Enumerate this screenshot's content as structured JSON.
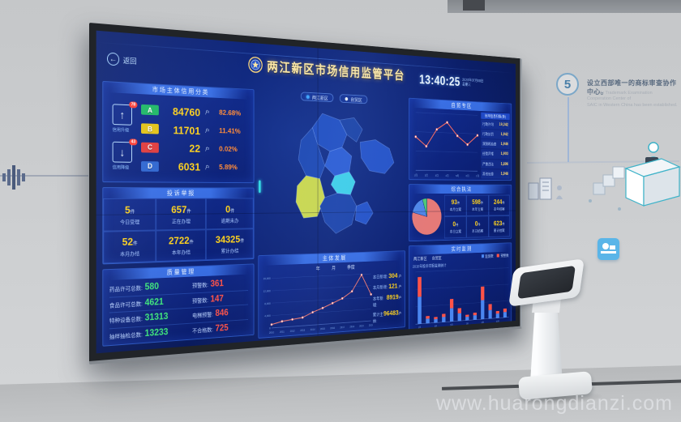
{
  "scene": {
    "watermark": "www.huarongdianzi.com",
    "wall_step": {
      "number": "5",
      "headline_cn": "设立西部唯一的商标审查协作中心。",
      "caption_en_line1": "The only Trademark Examination Cooperation Center of",
      "caption_en_line2": "SAIC in Western China has been established."
    }
  },
  "screen": {
    "back_label": "返回",
    "header": {
      "title": "两江新区市场信用监管平台",
      "clock": "13:40:25",
      "date": "2020年07月08日",
      "weekday": "星期三"
    },
    "map_tabs": {
      "tab1": "两江新区",
      "tab2": "自贸区"
    },
    "credit": {
      "title": "市场主体信用分类",
      "upgrade_label": "信用升级",
      "upgrade_badge": "78",
      "downgrade_label": "信用降级",
      "downgrade_badge": "43",
      "rows": [
        {
          "grade": "A",
          "count": "84760",
          "unit": "户",
          "pct": "82.68%",
          "color": "#1fb864"
        },
        {
          "grade": "B",
          "count": "11701",
          "unit": "户",
          "pct": "11.41%",
          "color": "#e6c414"
        },
        {
          "grade": "C",
          "count": "22",
          "unit": "户",
          "pct": "0.02%",
          "color": "#e23b3b"
        },
        {
          "grade": "D",
          "count": "6031",
          "unit": "户",
          "pct": "5.89%",
          "color": "#2f66d0"
        }
      ]
    },
    "complaints": {
      "title": "投诉举报",
      "cells": [
        {
          "value": "5",
          "unit": "件",
          "label": "今日受理"
        },
        {
          "value": "657",
          "unit": "件",
          "label": "正在办理"
        },
        {
          "value": "0",
          "unit": "件",
          "label": "逾期未办"
        },
        {
          "value": "52",
          "unit": "件",
          "label": "本月办结"
        },
        {
          "value": "2722",
          "unit": "件",
          "label": "本年办结"
        },
        {
          "value": "34325",
          "unit": "件",
          "label": "累计办结"
        }
      ]
    },
    "quality": {
      "title": "质量管理",
      "rows": [
        {
          "l": "药品许可总数:",
          "lv": "580",
          "r": "预警数:",
          "rv": "361"
        },
        {
          "l": "食品许可总数:",
          "lv": "4621",
          "r": "预警数:",
          "rv": "147"
        },
        {
          "l": "特种设备总数:",
          "lv": "31313",
          "r": "电梯预警:",
          "rv": "846"
        },
        {
          "l": "抽样抽检总数:",
          "lv": "13233",
          "r": "不合格数:",
          "rv": "725"
        }
      ]
    },
    "subject": {
      "title": "主体发展",
      "legend": [
        "年",
        "月",
        "季度"
      ],
      "stats": [
        {
          "label": "本日新增:",
          "value": "304",
          "unit": "户"
        },
        {
          "label": "本月新增:",
          "value": "121",
          "unit": "户"
        },
        {
          "label": "本年新增:",
          "value": "8919",
          "unit": "户"
        },
        {
          "label": "累计主体:",
          "value": "96483",
          "unit": "户"
        }
      ]
    },
    "ftz": {
      "title": "自贸专区",
      "list_header": "信用信息归集(条)",
      "rows": [
        {
          "label": "行政许可",
          "value": "19,342"
        },
        {
          "label": "行政处罚",
          "value": "1,942"
        },
        {
          "label": "双随机抽查",
          "value": "1,946"
        },
        {
          "label": "经营异常",
          "value": "1,903"
        },
        {
          "label": "严重违法",
          "value": "1,896"
        },
        {
          "label": "其他信息",
          "value": "1,948"
        }
      ]
    },
    "enforcement": {
      "title": "综合执法",
      "cells": [
        {
          "value": "93",
          "unit": "件",
          "label": "本月立案"
        },
        {
          "value": "598",
          "unit": "件",
          "label": "本年立案"
        },
        {
          "value": "244",
          "unit": "件",
          "label": "本年结案"
        },
        {
          "value": "0",
          "unit": "件",
          "label": "本日立案"
        },
        {
          "value": "0",
          "unit": "件",
          "label": "本日结案"
        },
        {
          "value": "623",
          "unit": "件",
          "label": "累计结案"
        }
      ]
    },
    "monitor": {
      "title": "实时监测",
      "tab1": "两江新区",
      "tab2": "自贸区",
      "legend1": "监测数",
      "legend2": "预警数",
      "caption": "2019年投诉举报监测统计"
    }
  },
  "chart_data": [
    {
      "id": "subject-growth",
      "type": "line",
      "title": "主体发展",
      "x": [
        "2010",
        "2011",
        "2012",
        "2013",
        "2014",
        "2015",
        "2016",
        "2017",
        "2018",
        "2019",
        "2020"
      ],
      "values": [
        1100,
        1900,
        2300,
        2700,
        4200,
        5400,
        6800,
        8200,
        10400,
        15800,
        9000
      ],
      "ylim": [
        0,
        16000
      ],
      "yticks": [
        "0",
        "4,000",
        "8,000",
        "12,000",
        "16,000"
      ],
      "color": "#ff7d6e"
    },
    {
      "id": "ftz-trend",
      "type": "line",
      "title": "自贸专区月度趋势",
      "x": [
        "1月",
        "2月",
        "3月",
        "4月",
        "5月",
        "6月",
        "7月"
      ],
      "values": [
        58,
        42,
        72,
        85,
        62,
        47,
        64
      ],
      "ylim": [
        0,
        100
      ],
      "color": "#ff6e62"
    },
    {
      "id": "case-pie",
      "type": "pie",
      "title": "综合执法案件构成",
      "labels": [
        "一般程序",
        "简易程序",
        "其他"
      ],
      "values": [
        79,
        16,
        5
      ],
      "colors": [
        "#e57a78",
        "#4f86e8",
        "#4ec878"
      ]
    },
    {
      "id": "monitor-bars",
      "type": "stacked-bar",
      "title": "2019年投诉举报监测统计",
      "categories": [
        "1月",
        "2月",
        "3月",
        "4月",
        "5月",
        "6月",
        "7月",
        "8月",
        "9月",
        "10月",
        "11月",
        "12月"
      ],
      "series": [
        {
          "name": "监测数",
          "color": "#4a86f0",
          "values": [
            52,
            9,
            7,
            10,
            26,
            15,
            7,
            9,
            38,
            17,
            9,
            11
          ]
        },
        {
          "name": "预警数",
          "color": "#ff5348",
          "values": [
            38,
            5,
            4,
            6,
            18,
            10,
            4,
            5,
            27,
            12,
            5,
            7
          ]
        }
      ],
      "ylim": [
        0,
        100
      ]
    }
  ]
}
